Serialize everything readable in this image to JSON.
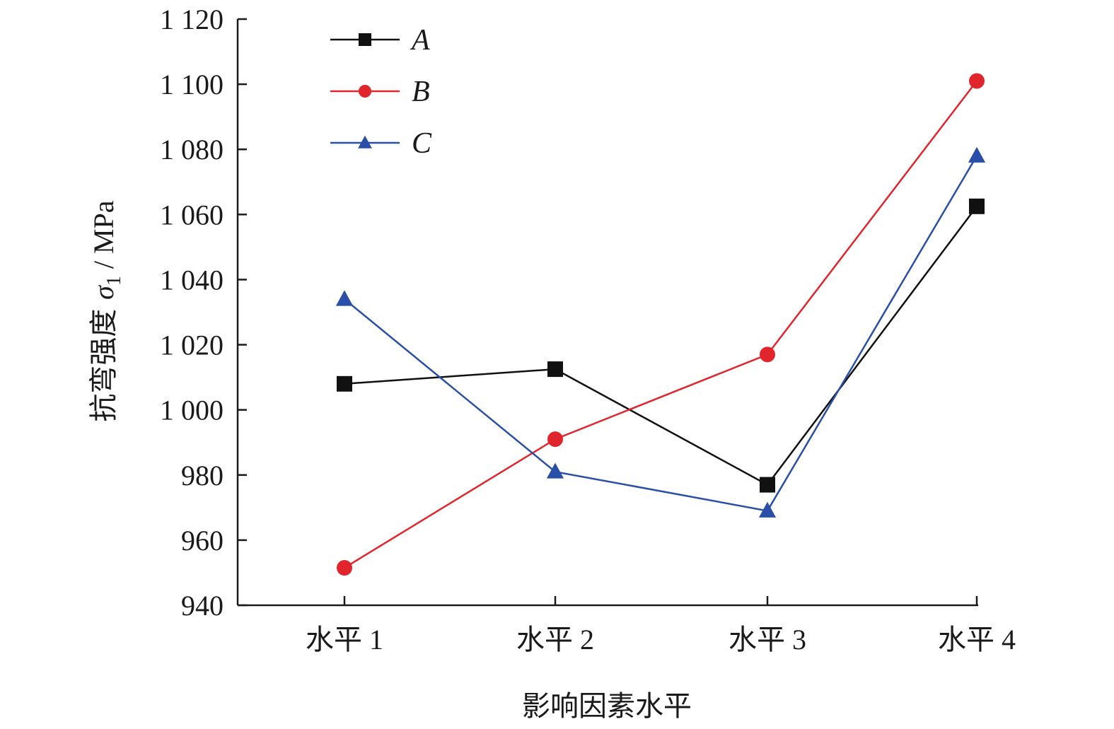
{
  "chart_data": {
    "type": "line",
    "categories": [
      "水平 1",
      "水平 2",
      "水平 3",
      "水平 4"
    ],
    "xlabel": "影响因素水平",
    "ylabel_main": "抗弯强度 ",
    "ylabel_symbol": "σ",
    "ylabel_subscript": "1",
    "ylabel_unit": " / MPa",
    "ylim": [
      940,
      1120
    ],
    "yticks": [
      940,
      960,
      980,
      1000,
      1020,
      1040,
      1060,
      1080,
      1100,
      1120
    ],
    "ytick_labels": [
      "940",
      "960",
      "980",
      "1 000",
      "1 020",
      "1 040",
      "1 060",
      "1 080",
      "1 100",
      "1 120"
    ],
    "grid": false,
    "legend_position": "top-left",
    "series": [
      {
        "name": "A",
        "marker": "square",
        "color": "#111111",
        "values": [
          1008,
          1012.5,
          977,
          1062.5
        ]
      },
      {
        "name": "B",
        "marker": "circle",
        "color": "#e0262c",
        "values": [
          951.5,
          991,
          1017,
          1101
        ]
      },
      {
        "name": "C",
        "marker": "triangle",
        "color": "#2a4fa8",
        "values": [
          1034,
          981,
          969,
          1078
        ]
      }
    ]
  }
}
